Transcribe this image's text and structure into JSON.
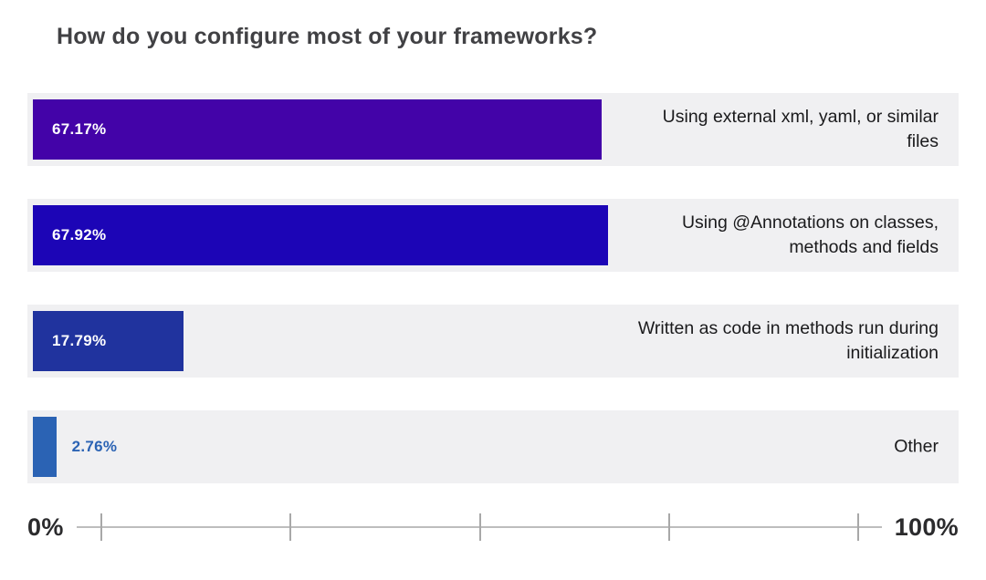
{
  "title": "How do you configure most of your frameworks?",
  "chart_data": {
    "type": "bar",
    "orientation": "horizontal",
    "title": "How do you configure most of your frameworks?",
    "categories": [
      "Using external xml, yaml, or similar files",
      "Using @Annotations on classes, methods and fields",
      "Written as code in methods run during initialization",
      "Other"
    ],
    "values": [
      67.17,
      67.92,
      17.79,
      2.76
    ],
    "value_labels": [
      "67.17%",
      "67.92%",
      "17.79%",
      "2.76%"
    ],
    "bar_colors": [
      "#4303a8",
      "#1c05b6",
      "#20339e",
      "#2b63b4"
    ],
    "track_color": "#f0f0f2",
    "xlim": [
      0,
      100
    ],
    "grid": false,
    "legend": "none",
    "axis": {
      "min_label": "0%",
      "max_label": "100%",
      "tick_count": 5
    }
  }
}
